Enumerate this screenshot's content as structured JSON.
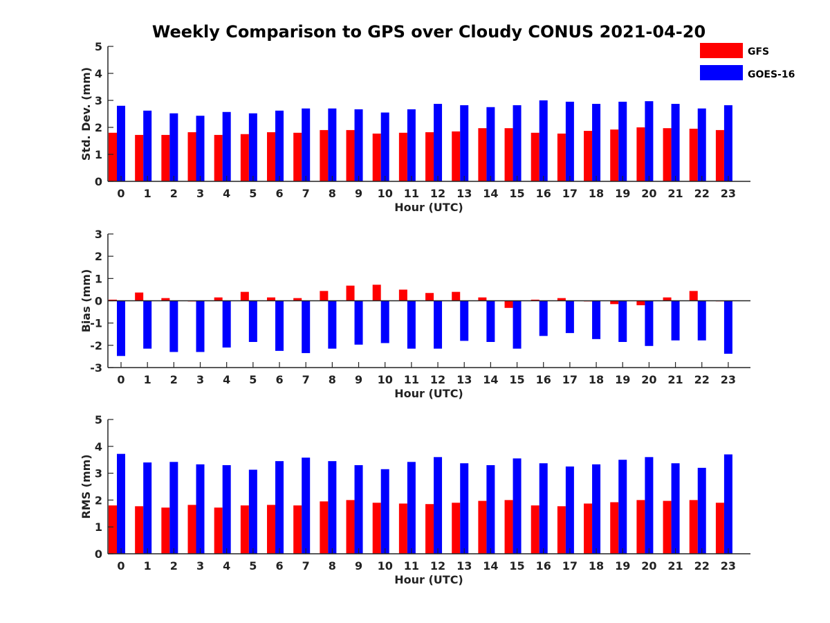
{
  "colors": {
    "gfs": "#ff0000",
    "goes": "#0000ff"
  },
  "chart_data": [
    {
      "type": "bar",
      "title": "Weekly Comparison to GPS over Cloudy CONUS 2021-04-20",
      "xlabel": "Hour (UTC)",
      "ylabel": "Std. Dev. (mm)",
      "ylim": [
        0,
        5
      ],
      "yticks": [
        "0",
        "1",
        "2",
        "3",
        "4",
        "5"
      ],
      "categories": [
        "0",
        "1",
        "2",
        "3",
        "4",
        "5",
        "6",
        "7",
        "8",
        "9",
        "10",
        "11",
        "12",
        "13",
        "14",
        "15",
        "16",
        "17",
        "18",
        "19",
        "20",
        "21",
        "22",
        "23"
      ],
      "legend": {
        "placement": "top-right",
        "entries": [
          "GFS",
          "GOES-16"
        ]
      },
      "series": [
        {
          "name": "GFS",
          "values": [
            1.8,
            1.72,
            1.72,
            1.82,
            1.72,
            1.75,
            1.82,
            1.8,
            1.9,
            1.9,
            1.77,
            1.8,
            1.82,
            1.85,
            1.97,
            1.97,
            1.8,
            1.77,
            1.87,
            1.92,
            2.0,
            1.97,
            1.95,
            1.9
          ]
        },
        {
          "name": "GOES-16",
          "values": [
            2.8,
            2.62,
            2.52,
            2.43,
            2.57,
            2.52,
            2.62,
            2.7,
            2.7,
            2.67,
            2.55,
            2.67,
            2.87,
            2.82,
            2.75,
            2.82,
            3.0,
            2.95,
            2.87,
            2.95,
            2.97,
            2.87,
            2.7,
            2.82
          ]
        }
      ]
    },
    {
      "type": "bar",
      "xlabel": "Hour (UTC)",
      "ylabel": "Bias (mm)",
      "ylim": [
        -3,
        3
      ],
      "yticks": [
        "-3",
        "-2",
        "-1",
        "0",
        "1",
        "2",
        "3"
      ],
      "zero_line": true,
      "categories": [
        "0",
        "1",
        "2",
        "3",
        "4",
        "5",
        "6",
        "7",
        "8",
        "9",
        "10",
        "11",
        "12",
        "13",
        "14",
        "15",
        "16",
        "17",
        "18",
        "19",
        "20",
        "21",
        "22",
        "23"
      ],
      "series": [
        {
          "name": "GFS",
          "values": [
            0.05,
            0.37,
            0.12,
            -0.03,
            0.15,
            0.4,
            0.15,
            0.12,
            0.44,
            0.68,
            0.72,
            0.5,
            0.35,
            0.4,
            0.15,
            -0.32,
            0.05,
            0.12,
            -0.03,
            -0.15,
            -0.2,
            0.15,
            0.44,
            0.0
          ]
        },
        {
          "name": "GOES-16",
          "values": [
            -2.48,
            -2.15,
            -2.3,
            -2.3,
            -2.1,
            -1.85,
            -2.25,
            -2.35,
            -2.15,
            -1.97,
            -1.9,
            -2.15,
            -2.15,
            -1.8,
            -1.85,
            -2.15,
            -1.58,
            -1.45,
            -1.72,
            -1.85,
            -2.03,
            -1.78,
            -1.78,
            -2.38
          ]
        }
      ]
    },
    {
      "type": "bar",
      "xlabel": "Hour (UTC)",
      "ylabel": "RMS (mm)",
      "ylim": [
        0,
        5
      ],
      "yticks": [
        "0",
        "1",
        "2",
        "3",
        "4",
        "5"
      ],
      "categories": [
        "0",
        "1",
        "2",
        "3",
        "4",
        "5",
        "6",
        "7",
        "8",
        "9",
        "10",
        "11",
        "12",
        "13",
        "14",
        "15",
        "16",
        "17",
        "18",
        "19",
        "20",
        "21",
        "22",
        "23"
      ],
      "series": [
        {
          "name": "GFS",
          "values": [
            1.8,
            1.77,
            1.72,
            1.82,
            1.72,
            1.8,
            1.82,
            1.8,
            1.95,
            2.0,
            1.9,
            1.87,
            1.85,
            1.9,
            1.97,
            2.0,
            1.8,
            1.77,
            1.87,
            1.92,
            2.0,
            1.97,
            2.0,
            1.9
          ]
        },
        {
          "name": "GOES-16",
          "values": [
            3.72,
            3.4,
            3.42,
            3.33,
            3.3,
            3.13,
            3.45,
            3.58,
            3.45,
            3.3,
            3.15,
            3.42,
            3.6,
            3.37,
            3.3,
            3.55,
            3.37,
            3.25,
            3.33,
            3.5,
            3.6,
            3.37,
            3.2,
            3.7
          ]
        }
      ]
    }
  ]
}
